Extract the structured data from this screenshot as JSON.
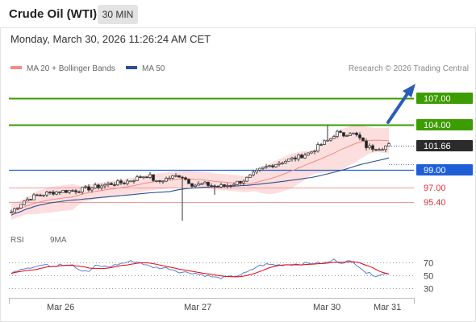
{
  "header": {
    "title": "Crude Oil (WTI)",
    "timeframe": "30 MIN"
  },
  "datetime": "Monday, March 30, 2026 11:26:24 AM CET",
  "legend": {
    "ma20": "MA 20 + Bollinger Bands",
    "ma50": "MA 50",
    "ma20_color": "#f28b82",
    "ma50_color": "#2c4f91"
  },
  "credit": "Research © 2026 Trading Central",
  "rsi_legend": {
    "rsi": "RSI",
    "ma9": "9MA",
    "rsi_color": "#4a74d4",
    "ma9_color": "#e8000b"
  },
  "x_labels": [
    "Mar 26",
    "Mar 27",
    "Mar 30",
    "Mar 31"
  ],
  "chart_data": {
    "type": "line",
    "price_range": [
      92.8,
      109.4
    ],
    "levels": [
      {
        "label": "107.00",
        "value": 107.0,
        "kind": "resistance",
        "color": "#3c9c00"
      },
      {
        "label": "104.00",
        "value": 104.0,
        "kind": "resistance",
        "color": "#3c9c00"
      },
      {
        "label": "101.66",
        "value": 101.66,
        "kind": "last",
        "color": "#2b2b2b"
      },
      {
        "label": "99.00",
        "value": 99.0,
        "kind": "pivot",
        "color": "#1e5fd8"
      },
      {
        "label": "97.00",
        "value": 97.0,
        "kind": "support",
        "color": "#e8323a"
      },
      {
        "label": "95.40",
        "value": 95.4,
        "kind": "support",
        "color": "#e8323a"
      }
    ],
    "rsi_levels": [
      70,
      50,
      30
    ],
    "rsi_range": [
      20,
      80
    ]
  }
}
